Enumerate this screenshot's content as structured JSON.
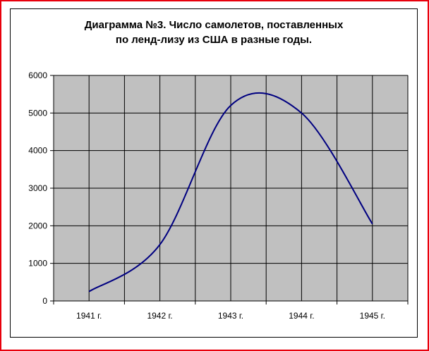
{
  "chart_data": {
    "type": "line",
    "title_lines": [
      "Диаграмма №3. Число самолетов, поставленных",
      "по ленд-лизу из США в разные годы."
    ],
    "xlabel": "",
    "ylabel": "",
    "categories": [
      "1941 г.",
      "1942 г.",
      "1943 г.",
      "1944 г.",
      "1945 г."
    ],
    "ylim": [
      0,
      6000
    ],
    "yticks": [
      "0",
      "1000",
      "2000",
      "3000",
      "4000",
      "5000",
      "6000"
    ],
    "grid": true,
    "legend": "none",
    "series": [
      {
        "values": [
          250,
          1500,
          5200,
          5000,
          2050
        ]
      }
    ],
    "colors": {
      "line": "#000080",
      "plot_area": "#c0c0c0",
      "grid": "#000000",
      "frame_border": "#e8000c"
    }
  }
}
